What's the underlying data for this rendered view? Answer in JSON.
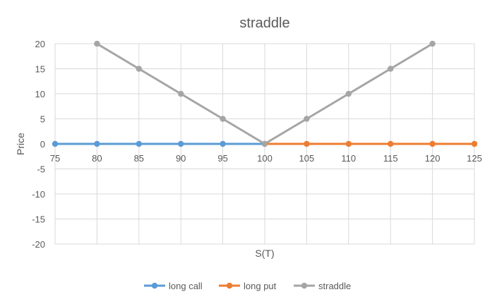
{
  "chart_data": {
    "type": "line",
    "title": "straddle",
    "xlabel": "S(T)",
    "ylabel": "Price",
    "x": [
      75,
      80,
      85,
      90,
      95,
      100,
      105,
      110,
      115,
      120,
      125
    ],
    "x_tick_labels": [
      "75",
      "80",
      "85",
      "90",
      "95",
      "100",
      "105",
      "110",
      "115",
      "120",
      "125"
    ],
    "ylim": [
      -20,
      20
    ],
    "y_ticks": [
      -20,
      -15,
      -10,
      -5,
      0,
      5,
      10,
      15,
      20
    ],
    "y_tick_labels": [
      "-20",
      "-15",
      "-10",
      "-5",
      "0",
      "5",
      "10",
      "15",
      "20"
    ],
    "grid": true,
    "legend_position": "bottom",
    "series": [
      {
        "name": "long call",
        "color": "#5B9BD5",
        "x": [
          75,
          80,
          85,
          90,
          95,
          100
        ],
        "values": [
          0,
          0,
          0,
          0,
          0,
          0
        ]
      },
      {
        "name": "long put",
        "color": "#ED7D31",
        "x": [
          100,
          105,
          110,
          115,
          120,
          125
        ],
        "values": [
          0,
          0,
          0,
          0,
          0,
          0
        ]
      },
      {
        "name": "straddle",
        "color": "#A5A5A5",
        "x": [
          80,
          85,
          90,
          95,
          100,
          105,
          110,
          115,
          120
        ],
        "values": [
          20,
          15,
          10,
          5,
          0,
          5,
          10,
          15,
          20
        ]
      }
    ]
  }
}
